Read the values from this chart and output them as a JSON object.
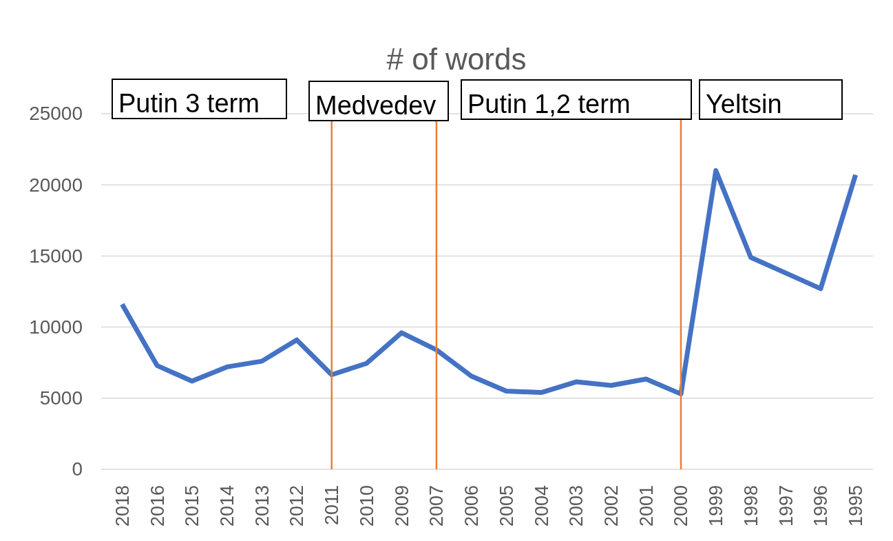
{
  "chart_data": {
    "type": "line",
    "title": "# of words",
    "categories": [
      "2018",
      "2016",
      "2015",
      "2014",
      "2013",
      "2012",
      "2011",
      "2010",
      "2009",
      "2007",
      "2006",
      "2005",
      "2004",
      "2003",
      "2002",
      "2001",
      "2000",
      "1999",
      "1998",
      "1997",
      "1996",
      "1995"
    ],
    "series": [
      {
        "color": "#4472c4",
        "values": [
          11600,
          7300,
          6200,
          7200,
          7600,
          9100,
          6650,
          7450,
          9600,
          8400,
          6550,
          5500,
          5400,
          6150,
          5900,
          6350,
          5300,
          21000,
          14900,
          13800,
          12700,
          20700
        ]
      }
    ],
    "ylim": [
      0,
      25000
    ],
    "yticks": [
      0,
      5000,
      10000,
      15000,
      20000,
      25000
    ],
    "grid": "y",
    "ref_lines": [
      {
        "axis": "x",
        "value": "2011",
        "color": "#ed7d31"
      },
      {
        "axis": "x",
        "value": "2007",
        "color": "#ed7d31"
      },
      {
        "axis": "x",
        "value": "2000",
        "color": "#ed7d31"
      }
    ],
    "annotations": [
      "Putin 3 term",
      "Medvedev",
      "Putin 1,2 term",
      "Yeltsin"
    ]
  }
}
